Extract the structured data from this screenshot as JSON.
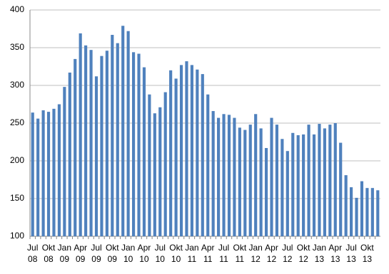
{
  "chart_data": {
    "type": "bar",
    "color": "#4f81bd",
    "grid": true,
    "ylim": [
      100,
      400
    ],
    "yticks": [
      100,
      150,
      200,
      250,
      300,
      350,
      400
    ],
    "categories": [
      "Jul 08",
      null,
      null,
      "Okt 08",
      null,
      null,
      "Jan 09",
      null,
      null,
      "Apr 09",
      null,
      null,
      "Jul 09",
      null,
      null,
      "Okt 09",
      null,
      null,
      "Jan 10",
      null,
      null,
      "Apr 10",
      null,
      null,
      "Jul 10",
      null,
      null,
      "Okt 10",
      null,
      null,
      "Jan 11",
      null,
      null,
      "Apr 11",
      null,
      null,
      "Jul 11",
      null,
      null,
      "Okt 11",
      null,
      null,
      "Jan 12",
      null,
      null,
      "Apr 12",
      null,
      null,
      "Jul 12",
      null,
      null,
      "Okt 12",
      null,
      null,
      "Jan 13",
      null,
      null,
      "Apr 13",
      null,
      null,
      "Jul 13",
      null,
      null,
      "Okt 13",
      null,
      null
    ],
    "values": [
      264,
      256,
      267,
      265,
      269,
      275,
      298,
      317,
      335,
      369,
      353,
      347,
      312,
      339,
      346,
      367,
      356,
      379,
      372,
      344,
      342,
      324,
      288,
      263,
      271,
      291,
      320,
      309,
      327,
      332,
      327,
      321,
      315,
      288,
      266,
      257,
      262,
      261,
      257,
      244,
      241,
      248,
      262,
      243,
      217,
      257,
      248,
      229,
      213,
      237,
      234,
      235,
      248,
      235,
      249,
      243,
      248,
      250,
      224,
      181,
      165,
      151,
      173,
      164,
      164,
      161
    ]
  }
}
